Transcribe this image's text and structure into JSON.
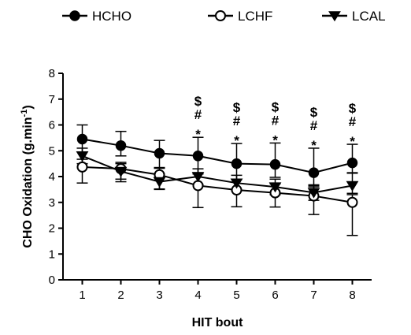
{
  "chart_data": {
    "type": "line",
    "xlabel": "HIT bout",
    "ylabel": "CHO Oxidation (g.min",
    "ylabel_superscript": "-1",
    "ylabel_close": ")",
    "x": [
      1,
      2,
      3,
      4,
      5,
      6,
      7,
      8
    ],
    "xlim": [
      0.5,
      8.5
    ],
    "ylim": [
      0,
      8
    ],
    "yticks": [
      0,
      1,
      2,
      3,
      4,
      5,
      6,
      7,
      8
    ],
    "grid": false,
    "legend_placement": "top",
    "series": [
      {
        "name": "HCHO",
        "marker": "filled-circle",
        "values": [
          5.45,
          5.2,
          4.9,
          4.8,
          4.5,
          4.47,
          4.15,
          4.53
        ],
        "err_up": [
          0.55,
          0.55,
          0.5,
          0.72,
          0.78,
          0.83,
          0.95,
          0.72
        ],
        "err_down": [
          0.5,
          0.4,
          0.55,
          0.65,
          0.6,
          0.5,
          0.5,
          0.4
        ]
      },
      {
        "name": "LCHF",
        "marker": "open-circle",
        "values": [
          4.37,
          4.3,
          4.07,
          3.65,
          3.48,
          3.37,
          3.25,
          3.0
        ],
        "err_up": [
          0.3,
          0.25,
          0.25,
          0.45,
          0.4,
          0.35,
          0.35,
          0.3
        ],
        "err_down": [
          0.62,
          0.5,
          0.55,
          0.85,
          0.65,
          0.55,
          0.72,
          1.28
        ]
      },
      {
        "name": "LCAL",
        "marker": "filled-triangle-down",
        "values": [
          4.8,
          4.2,
          3.8,
          4.0,
          3.75,
          3.6,
          3.38,
          3.65
        ],
        "err_up": [
          0.3,
          0.3,
          0.3,
          0.3,
          0.3,
          0.3,
          0.3,
          0.5
        ],
        "err_down": [
          0.3,
          0.3,
          0.3,
          0.3,
          0.3,
          0.3,
          0.3,
          0.3
        ]
      }
    ],
    "annotations": [
      {
        "x": 4,
        "symbols": [
          "$",
          "#",
          "*"
        ]
      },
      {
        "x": 5,
        "symbols": [
          "$",
          "#",
          "*"
        ]
      },
      {
        "x": 6,
        "symbols": [
          "$",
          "#",
          "*"
        ]
      },
      {
        "x": 7,
        "symbols": [
          "$",
          "#",
          "*"
        ]
      },
      {
        "x": 8,
        "symbols": [
          "$",
          "#",
          "*"
        ]
      }
    ]
  }
}
